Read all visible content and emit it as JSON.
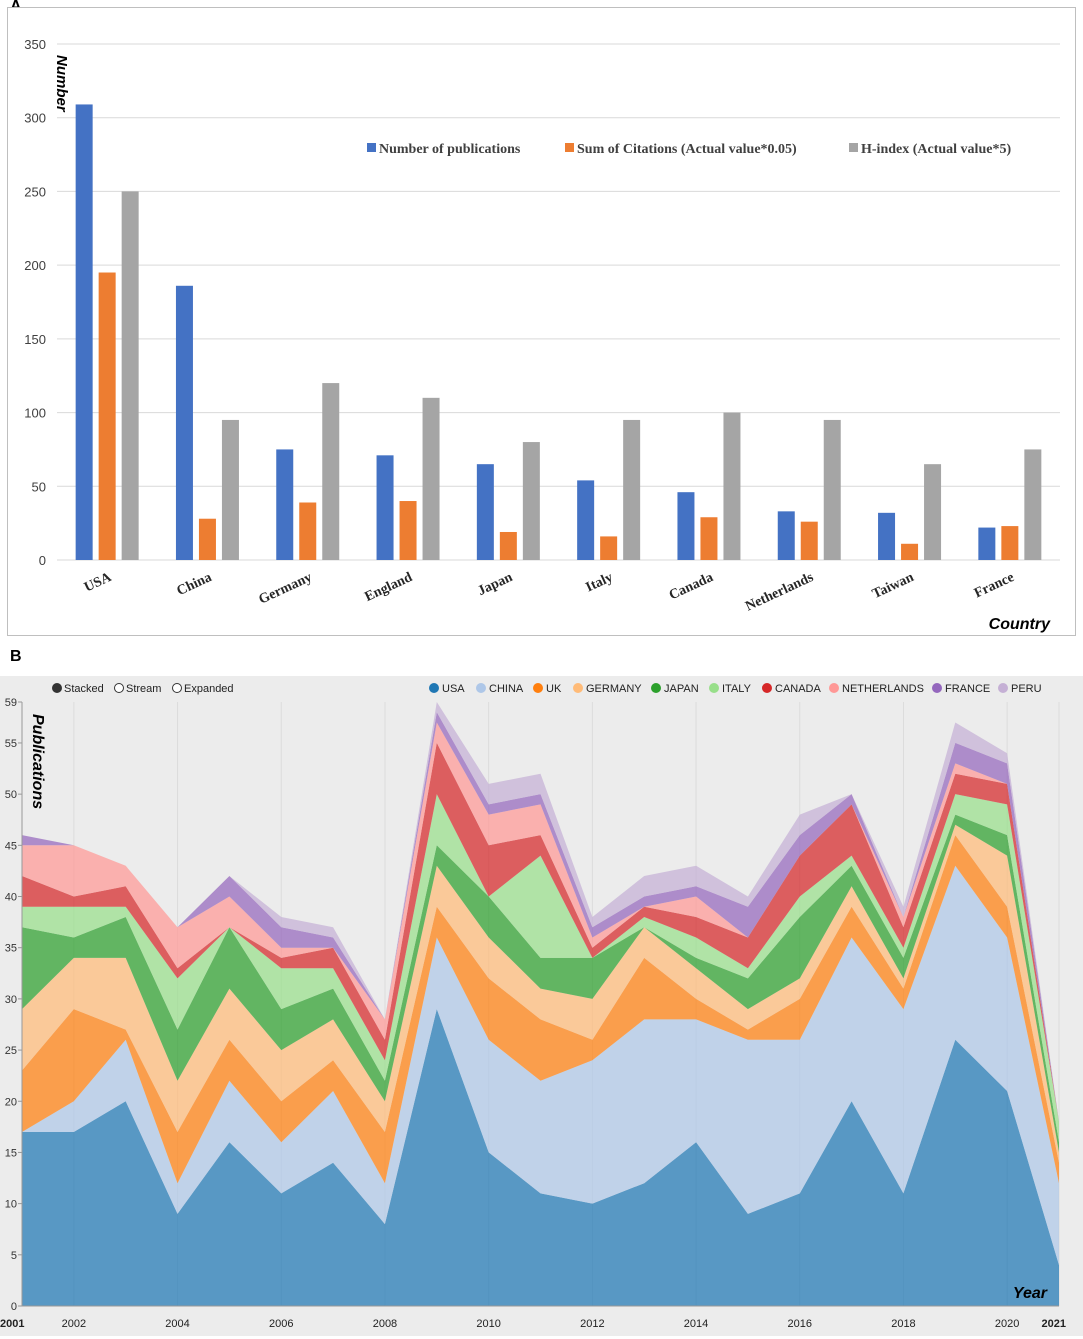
{
  "panel_a_label": "A",
  "panel_b_label": "B",
  "chart_data": [
    {
      "type": "bar",
      "title": "",
      "ylabel": "Number",
      "xlabel": "Country",
      "ylim": [
        0,
        350
      ],
      "yticks": [
        0,
        50,
        100,
        150,
        200,
        250,
        300,
        350
      ],
      "categories": [
        "USA",
        "China",
        "Germany",
        "England",
        "Japan",
        "Italy",
        "Canada",
        "Netherlands",
        "Taiwan",
        "France"
      ],
      "series": [
        {
          "name": "Number of publications",
          "color": "#4472C4",
          "values": [
            309,
            186,
            75,
            71,
            65,
            54,
            46,
            33,
            32,
            22
          ]
        },
        {
          "name": "Sum of Citations (Actual value*0.05)",
          "color": "#ED7D31",
          "values": [
            195,
            28,
            39,
            40,
            19,
            16,
            29,
            26,
            11,
            23
          ]
        },
        {
          "name": "H-index (Actual value*5)",
          "color": "#A5A5A5",
          "values": [
            250,
            95,
            120,
            110,
            80,
            95,
            100,
            95,
            65,
            75
          ]
        }
      ],
      "legend_position": "top-right"
    },
    {
      "type": "area",
      "stacked": true,
      "ylabel": "Publications",
      "xlabel": "Year",
      "ylim": [
        0,
        59
      ],
      "yticks": [
        0,
        5,
        10,
        15,
        20,
        25,
        30,
        35,
        40,
        45,
        50,
        55,
        59
      ],
      "x": [
        2001,
        2002,
        2003,
        2004,
        2005,
        2006,
        2007,
        2008,
        2009,
        2010,
        2011,
        2012,
        2013,
        2014,
        2015,
        2016,
        2017,
        2018,
        2019,
        2020,
        2021
      ],
      "xticks": [
        "2001",
        "2002",
        "2004",
        "2006",
        "2008",
        "2010",
        "2012",
        "2014",
        "2016",
        "2018",
        "2020",
        "2021"
      ],
      "mode_options": [
        "Stacked",
        "Stream",
        "Expanded"
      ],
      "mode_selected": "Stacked",
      "series": [
        {
          "name": "USA",
          "color": "#1F77B4",
          "values": [
            17,
            17,
            20,
            9,
            16,
            11,
            14,
            8,
            29,
            15,
            11,
            10,
            12,
            16,
            9,
            11,
            20,
            11,
            26,
            21,
            4
          ]
        },
        {
          "name": "CHINA",
          "color": "#AEC7E8",
          "values": [
            0,
            3,
            6,
            3,
            6,
            5,
            7,
            4,
            7,
            11,
            11,
            14,
            16,
            12,
            17,
            15,
            16,
            18,
            17,
            15,
            8
          ]
        },
        {
          "name": "UK",
          "color": "#FF7F0E",
          "values": [
            6,
            9,
            1,
            5,
            4,
            4,
            3,
            5,
            3,
            6,
            6,
            2,
            6,
            2,
            1,
            4,
            3,
            2,
            3,
            3,
            2
          ]
        },
        {
          "name": "GERMANY",
          "color": "#FFBB78",
          "values": [
            6,
            5,
            7,
            5,
            5,
            5,
            4,
            3,
            4,
            4,
            3,
            4,
            3,
            3,
            2,
            2,
            2,
            1,
            1,
            5,
            1
          ]
        },
        {
          "name": "JAPAN",
          "color": "#2CA02C",
          "values": [
            8,
            2,
            4,
            5,
            6,
            4,
            3,
            2,
            2,
            4,
            3,
            4,
            0,
            1,
            3,
            6,
            2,
            2,
            1,
            2,
            1
          ]
        },
        {
          "name": "ITALY",
          "color": "#98DF8A",
          "values": [
            2,
            3,
            1,
            5,
            0,
            4,
            2,
            2,
            5,
            0,
            10,
            0,
            1,
            2,
            1,
            2,
            1,
            1,
            2,
            3,
            2
          ]
        },
        {
          "name": "CANADA",
          "color": "#D62728",
          "values": [
            3,
            1,
            2,
            1,
            0,
            1,
            2,
            2,
            5,
            5,
            2,
            1,
            1,
            2,
            3,
            4,
            5,
            2,
            2,
            2,
            0
          ]
        },
        {
          "name": "NETHERLANDS",
          "color": "#FF9896",
          "values": [
            3,
            5,
            2,
            4,
            3,
            1,
            0,
            2,
            2,
            3,
            3,
            1,
            0,
            2,
            0,
            0,
            0,
            1,
            1,
            0,
            0
          ]
        },
        {
          "name": "FRANCE",
          "color": "#9467BD",
          "values": [
            1,
            0,
            0,
            0,
            2,
            2,
            1,
            0,
            1,
            1,
            1,
            1,
            1,
            1,
            3,
            2,
            1,
            0,
            2,
            2,
            0
          ]
        },
        {
          "name": "PERU",
          "color": "#C5B0D5",
          "values": [
            0,
            0,
            0,
            0,
            0,
            1,
            1,
            0,
            1,
            2,
            2,
            1,
            2,
            2,
            1,
            2,
            0,
            1,
            2,
            1,
            0
          ]
        }
      ],
      "legend_position": "top"
    }
  ]
}
